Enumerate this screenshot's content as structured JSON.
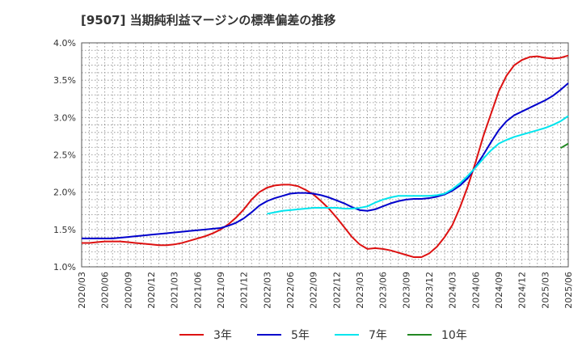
{
  "title": "[9507]  当期純利益マージンの標準偏差の推移",
  "chart_data": {
    "type": "line",
    "title": "[9507]  当期純利益マージンの標準偏差の推移",
    "xlabel": "",
    "ylabel": "",
    "x_ticks": [
      "2020/03",
      "2020/06",
      "2020/09",
      "2020/12",
      "2021/03",
      "2021/06",
      "2021/09",
      "2021/12",
      "2022/03",
      "2022/06",
      "2022/09",
      "2022/12",
      "2023/03",
      "2023/06",
      "2023/09",
      "2023/12",
      "2024/03",
      "2024/06",
      "2024/09",
      "2024/12",
      "2025/03",
      "2025/06"
    ],
    "y_ticks": [
      "1.0%",
      "1.5%",
      "2.0%",
      "2.5%",
      "3.0%",
      "3.5%",
      "4.0%"
    ],
    "ylim": [
      1.0,
      4.0
    ],
    "grid": true,
    "legend_position": "bottom",
    "series": [
      {
        "name": "3年",
        "color": "#dd1111",
        "points": [
          [
            "2020/03",
            1.32
          ],
          [
            "2020/04",
            1.32
          ],
          [
            "2020/05",
            1.33
          ],
          [
            "2020/06",
            1.34
          ],
          [
            "2020/07",
            1.34
          ],
          [
            "2020/08",
            1.34
          ],
          [
            "2020/09",
            1.33
          ],
          [
            "2020/10",
            1.32
          ],
          [
            "2020/11",
            1.31
          ],
          [
            "2020/12",
            1.3
          ],
          [
            "2021/01",
            1.29
          ],
          [
            "2021/02",
            1.29
          ],
          [
            "2021/03",
            1.3
          ],
          [
            "2021/04",
            1.32
          ],
          [
            "2021/05",
            1.35
          ],
          [
            "2021/06",
            1.38
          ],
          [
            "2021/07",
            1.41
          ],
          [
            "2021/08",
            1.45
          ],
          [
            "2021/09",
            1.5
          ],
          [
            "2021/10",
            1.57
          ],
          [
            "2021/11",
            1.66
          ],
          [
            "2021/12",
            1.77
          ],
          [
            "2022/01",
            1.9
          ],
          [
            "2022/02",
            2.0
          ],
          [
            "2022/03",
            2.06
          ],
          [
            "2022/04",
            2.09
          ],
          [
            "2022/05",
            2.1
          ],
          [
            "2022/06",
            2.1
          ],
          [
            "2022/07",
            2.08
          ],
          [
            "2022/08",
            2.03
          ],
          [
            "2022/09",
            1.97
          ],
          [
            "2022/10",
            1.88
          ],
          [
            "2022/11",
            1.78
          ],
          [
            "2022/12",
            1.66
          ],
          [
            "2023/01",
            1.53
          ],
          [
            "2023/02",
            1.4
          ],
          [
            "2023/03",
            1.3
          ],
          [
            "2023/04",
            1.24
          ],
          [
            "2023/05",
            1.25
          ],
          [
            "2023/06",
            1.24
          ],
          [
            "2023/07",
            1.22
          ],
          [
            "2023/08",
            1.19
          ],
          [
            "2023/09",
            1.16
          ],
          [
            "2023/10",
            1.13
          ],
          [
            "2023/11",
            1.13
          ],
          [
            "2023/12",
            1.18
          ],
          [
            "2024/01",
            1.27
          ],
          [
            "2024/02",
            1.4
          ],
          [
            "2024/03",
            1.56
          ],
          [
            "2024/04",
            1.8
          ],
          [
            "2024/05",
            2.08
          ],
          [
            "2024/06",
            2.4
          ],
          [
            "2024/07",
            2.75
          ],
          [
            "2024/08",
            3.05
          ],
          [
            "2024/09",
            3.35
          ],
          [
            "2024/10",
            3.56
          ],
          [
            "2024/11",
            3.7
          ],
          [
            "2024/12",
            3.77
          ],
          [
            "2025/01",
            3.81
          ],
          [
            "2025/02",
            3.82
          ],
          [
            "2025/03",
            3.8
          ],
          [
            "2025/04",
            3.79
          ],
          [
            "2025/05",
            3.8
          ],
          [
            "2025/06",
            3.83
          ]
        ]
      },
      {
        "name": "5年",
        "color": "#0000cc",
        "points": [
          [
            "2020/03",
            1.38
          ],
          [
            "2020/04",
            1.38
          ],
          [
            "2020/05",
            1.38
          ],
          [
            "2020/06",
            1.38
          ],
          [
            "2020/07",
            1.38
          ],
          [
            "2020/08",
            1.39
          ],
          [
            "2020/09",
            1.4
          ],
          [
            "2020/10",
            1.41
          ],
          [
            "2020/11",
            1.42
          ],
          [
            "2020/12",
            1.43
          ],
          [
            "2021/01",
            1.44
          ],
          [
            "2021/02",
            1.45
          ],
          [
            "2021/03",
            1.46
          ],
          [
            "2021/04",
            1.47
          ],
          [
            "2021/05",
            1.48
          ],
          [
            "2021/06",
            1.49
          ],
          [
            "2021/07",
            1.5
          ],
          [
            "2021/08",
            1.51
          ],
          [
            "2021/09",
            1.52
          ],
          [
            "2021/10",
            1.55
          ],
          [
            "2021/11",
            1.59
          ],
          [
            "2021/12",
            1.65
          ],
          [
            "2022/01",
            1.73
          ],
          [
            "2022/02",
            1.82
          ],
          [
            "2022/03",
            1.88
          ],
          [
            "2022/04",
            1.92
          ],
          [
            "2022/05",
            1.95
          ],
          [
            "2022/06",
            1.98
          ],
          [
            "2022/07",
            1.99
          ],
          [
            "2022/08",
            1.99
          ],
          [
            "2022/09",
            1.98
          ],
          [
            "2022/10",
            1.96
          ],
          [
            "2022/11",
            1.93
          ],
          [
            "2022/12",
            1.89
          ],
          [
            "2023/01",
            1.85
          ],
          [
            "2023/02",
            1.8
          ],
          [
            "2023/03",
            1.76
          ],
          [
            "2023/04",
            1.75
          ],
          [
            "2023/05",
            1.77
          ],
          [
            "2023/06",
            1.81
          ],
          [
            "2023/07",
            1.85
          ],
          [
            "2023/08",
            1.88
          ],
          [
            "2023/09",
            1.9
          ],
          [
            "2023/10",
            1.91
          ],
          [
            "2023/11",
            1.91
          ],
          [
            "2023/12",
            1.92
          ],
          [
            "2024/01",
            1.94
          ],
          [
            "2024/02",
            1.97
          ],
          [
            "2024/03",
            2.02
          ],
          [
            "2024/04",
            2.09
          ],
          [
            "2024/05",
            2.19
          ],
          [
            "2024/06",
            2.34
          ],
          [
            "2024/07",
            2.5
          ],
          [
            "2024/08",
            2.67
          ],
          [
            "2024/09",
            2.83
          ],
          [
            "2024/10",
            2.95
          ],
          [
            "2024/11",
            3.03
          ],
          [
            "2024/12",
            3.08
          ],
          [
            "2025/01",
            3.13
          ],
          [
            "2025/02",
            3.18
          ],
          [
            "2025/03",
            3.23
          ],
          [
            "2025/04",
            3.29
          ],
          [
            "2025/05",
            3.37
          ],
          [
            "2025/06",
            3.46
          ]
        ]
      },
      {
        "name": "7年",
        "color": "#00e5ee",
        "points": [
          [
            "2022/03",
            1.71
          ],
          [
            "2022/04",
            1.73
          ],
          [
            "2022/05",
            1.75
          ],
          [
            "2022/06",
            1.76
          ],
          [
            "2022/07",
            1.77
          ],
          [
            "2022/08",
            1.78
          ],
          [
            "2022/09",
            1.79
          ],
          [
            "2022/10",
            1.79
          ],
          [
            "2022/11",
            1.79
          ],
          [
            "2022/12",
            1.79
          ],
          [
            "2023/01",
            1.78
          ],
          [
            "2023/02",
            1.78
          ],
          [
            "2023/03",
            1.79
          ],
          [
            "2023/04",
            1.81
          ],
          [
            "2023/05",
            1.86
          ],
          [
            "2023/06",
            1.9
          ],
          [
            "2023/07",
            1.93
          ],
          [
            "2023/08",
            1.95
          ],
          [
            "2023/09",
            1.95
          ],
          [
            "2023/10",
            1.95
          ],
          [
            "2023/11",
            1.95
          ],
          [
            "2023/12",
            1.95
          ],
          [
            "2024/01",
            1.96
          ],
          [
            "2024/02",
            1.98
          ],
          [
            "2024/03",
            2.04
          ],
          [
            "2024/04",
            2.12
          ],
          [
            "2024/05",
            2.22
          ],
          [
            "2024/06",
            2.33
          ],
          [
            "2024/07",
            2.45
          ],
          [
            "2024/08",
            2.56
          ],
          [
            "2024/09",
            2.65
          ],
          [
            "2024/10",
            2.7
          ],
          [
            "2024/11",
            2.74
          ],
          [
            "2024/12",
            2.77
          ],
          [
            "2025/01",
            2.8
          ],
          [
            "2025/02",
            2.83
          ],
          [
            "2025/03",
            2.86
          ],
          [
            "2025/04",
            2.9
          ],
          [
            "2025/05",
            2.95
          ],
          [
            "2025/06",
            3.02
          ]
        ]
      },
      {
        "name": "10年",
        "color": "#228822",
        "points": [
          [
            "2025/05",
            2.59
          ],
          [
            "2025/06",
            2.65
          ]
        ]
      }
    ]
  }
}
